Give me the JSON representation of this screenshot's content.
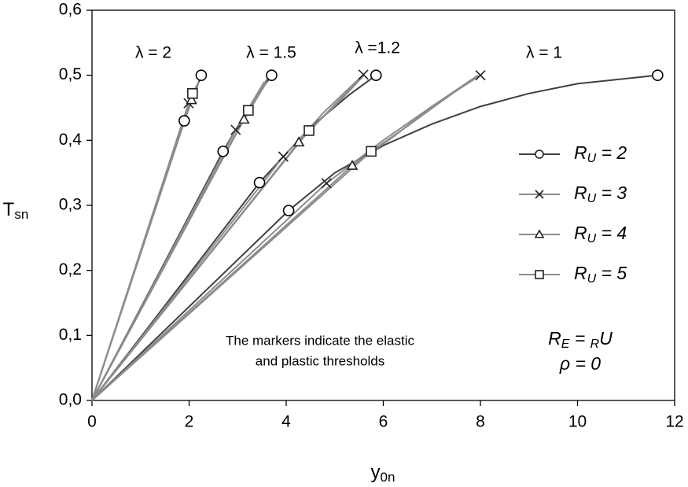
{
  "chart_data": {
    "type": "line",
    "x_label": "y0n",
    "y_label": "Tsn",
    "xlim": [
      0,
      12
    ],
    "ylim": [
      0,
      0.6
    ],
    "xticks": [
      0,
      2,
      4,
      6,
      8,
      10,
      12
    ],
    "yticks": [
      {
        "value": 0,
        "label": "0,0"
      },
      {
        "value": 0.1,
        "label": "0,1"
      },
      {
        "value": 0.2,
        "label": "0,2"
      },
      {
        "value": 0.3,
        "label": "0,3"
      },
      {
        "value": 0.4,
        "label": "0,4"
      },
      {
        "value": 0.5,
        "label": "0,5"
      },
      {
        "value": 0.6,
        "label": "0,6"
      }
    ],
    "grid": false,
    "legend": "right",
    "annotations": {
      "lambdas": [
        "λ = 2",
        "λ = 1.5",
        "λ =1.2",
        "λ = 1"
      ],
      "note": [
        "The markers indicate the elastic",
        "and plastic thresholds"
      ],
      "conditions": [
        "RE = RU",
        "ρ = 0"
      ]
    },
    "series": [
      {
        "name": "RU = 2",
        "color": "#404040",
        "marker": "circle",
        "curves": [
          {
            "x": [
              0,
              1.9,
              2.25
            ],
            "y": [
              0,
              0.43,
              0.5
            ],
            "markers": {
              "x": [
                1.9,
                2.25
              ],
              "y": [
                0.43,
                0.5
              ]
            }
          },
          {
            "x": [
              0,
              2.7,
              3.2,
              3.7
            ],
            "y": [
              0,
              0.383,
              0.447,
              0.5
            ],
            "markers": {
              "x": [
                2.7,
                3.7
              ],
              "y": [
                0.383,
                0.5
              ]
            }
          },
          {
            "x": [
              0,
              3.45,
              4.5,
              5.3,
              5.85
            ],
            "y": [
              0,
              0.335,
              0.42,
              0.47,
              0.5
            ],
            "markers": {
              "x": [
                3.45,
                5.85
              ],
              "y": [
                0.335,
                0.5
              ]
            }
          },
          {
            "x": [
              0,
              4.05,
              5,
              6,
              7,
              8,
              9,
              10,
              11.65
            ],
            "y": [
              0,
              0.292,
              0.35,
              0.392,
              0.425,
              0.452,
              0.472,
              0.487,
              0.5
            ],
            "markers": {
              "x": [
                4.05,
                11.65
              ],
              "y": [
                0.292,
                0.5
              ]
            }
          }
        ]
      },
      {
        "name": "RU = 3",
        "color": "#8c8c8c",
        "marker": "x",
        "curves": [
          {
            "x": [
              0,
              1.99,
              2.1
            ],
            "y": [
              0,
              0.457,
              0.47
            ],
            "markers": {
              "x": [
                1.99
              ],
              "y": [
                0.457
              ]
            }
          },
          {
            "x": [
              0,
              2.96,
              3.55
            ],
            "y": [
              0,
              0.416,
              0.49
            ],
            "markers": {
              "x": [
                2.96
              ],
              "y": [
                0.416
              ]
            }
          },
          {
            "x": [
              0,
              3.94,
              4.8,
              5.59
            ],
            "y": [
              0,
              0.375,
              0.445,
              0.501
            ],
            "markers": {
              "x": [
                3.94,
                5.59
              ],
              "y": [
                0.375,
                0.501
              ]
            }
          },
          {
            "x": [
              0,
              4.83,
              6,
              7,
              8
            ],
            "y": [
              0,
              0.334,
              0.4,
              0.452,
              0.5
            ],
            "markers": {
              "x": [
                4.83,
                8
              ],
              "y": [
                0.334,
                0.5
              ]
            }
          }
        ]
      },
      {
        "name": "RU = 4",
        "color": "#8c8c8c",
        "marker": "triangle",
        "curves": [
          {
            "x": [
              0,
              2.05,
              2.15
            ],
            "y": [
              0,
              0.462,
              0.48
            ],
            "markers": {
              "x": [
                2.05
              ],
              "y": [
                0.462
              ]
            }
          },
          {
            "x": [
              0,
              3.13,
              3.6
            ],
            "y": [
              0,
              0.432,
              0.49
            ],
            "markers": {
              "x": [
                3.13
              ],
              "y": [
                0.432
              ]
            }
          },
          {
            "x": [
              0,
              4.26,
              5,
              5.55
            ],
            "y": [
              0,
              0.397,
              0.455,
              0.497
            ],
            "markers": {
              "x": [
                4.26
              ],
              "y": [
                0.397
              ]
            }
          },
          {
            "x": [
              0,
              5.36,
              6.2,
              7,
              7.95
            ],
            "y": [
              0,
              0.361,
              0.405,
              0.452,
              0.5
            ],
            "markers": {
              "x": [
                5.36
              ],
              "y": [
                0.361
              ]
            }
          }
        ]
      },
      {
        "name": "RU = 5",
        "color": "#8c8c8c",
        "marker": "square",
        "curves": [
          {
            "x": [
              0,
              2.07,
              2.2
            ],
            "y": [
              0,
              0.472,
              0.49
            ],
            "markers": {
              "x": [
                2.07
              ],
              "y": [
                0.472
              ]
            }
          },
          {
            "x": [
              0,
              3.22,
              3.65
            ],
            "y": [
              0,
              0.446,
              0.5
            ],
            "markers": {
              "x": [
                3.22
              ],
              "y": [
                0.446
              ]
            }
          },
          {
            "x": [
              0,
              4.47,
              5.1,
              5.6
            ],
            "y": [
              0,
              0.415,
              0.46,
              0.5
            ],
            "markers": {
              "x": [
                4.47
              ],
              "y": [
                0.415
              ]
            }
          },
          {
            "x": [
              0,
              5.75,
              6.5,
              7.2,
              7.95
            ],
            "y": [
              0,
              0.383,
              0.422,
              0.46,
              0.5
            ],
            "markers": {
              "x": [
                5.75
              ],
              "y": [
                0.383
              ]
            }
          }
        ]
      }
    ]
  }
}
